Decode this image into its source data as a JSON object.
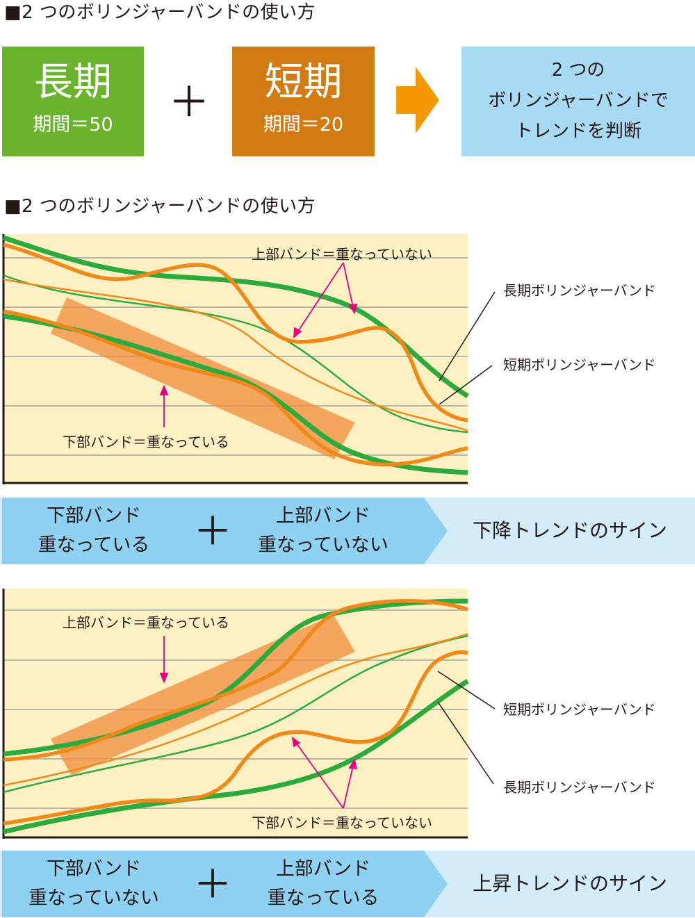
{
  "top_heading": "■2 つのボリンジャーバンドの使い方",
  "long_box": {
    "title": "長期",
    "period": "期間＝50",
    "color": "#6ab42d"
  },
  "plus": "＋",
  "short_box": {
    "title": "短期",
    "period": "期間＝20",
    "color": "#d17b12"
  },
  "arrow_color": "#f39800",
  "result_box": {
    "lines": [
      "2 つの",
      "ボリンジャーバンドで",
      "トレンドを判断"
    ]
  },
  "second_heading": "■2 つのボリンジャーバンドの使い方",
  "chart1": {
    "upper_label": "上部バンド＝重なっていない",
    "lower_label": "下部バンド＝重なっている",
    "long_label": "長期ボリンジャーバンド",
    "short_label": "短期ボリンジャーバンド"
  },
  "summary1": {
    "lower": [
      "下部バンド",
      "重なっている"
    ],
    "upper": [
      "上部バンド",
      "重なっていない"
    ],
    "sign": "下降トレンドのサイン"
  },
  "chart2": {
    "upper_label": "上部バンド＝重なっている",
    "lower_label": "下部バンド＝重なっていない",
    "short_label": "短期ボリンジャーバンド",
    "long_label": "長期ボリンジャーバンド"
  },
  "summary2": {
    "lower": [
      "下部バンド",
      "重なっていない"
    ],
    "upper": [
      "上部バンド",
      "重なっている"
    ],
    "sign": "上昇トレンドのサイン"
  },
  "colors": {
    "chart_bg": "#fdf1c3",
    "long_band": "#2daa3c",
    "short_band": "#ef8a1a",
    "highlight": "#f08c3c",
    "arrow_pink": "#e4007f",
    "summary_dark": "#8fd1f3",
    "summary_light": "#d3ecf9"
  }
}
